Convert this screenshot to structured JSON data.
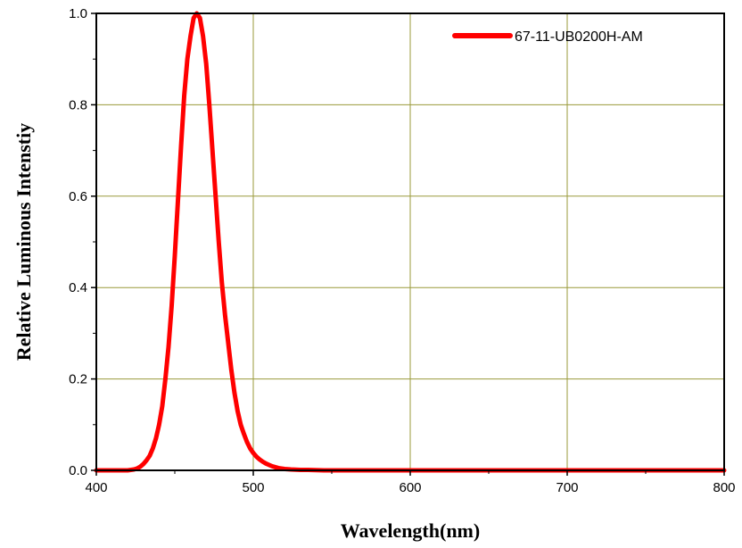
{
  "chart_data": {
    "type": "line",
    "title": "",
    "xlabel": "Wavelength(nm)",
    "ylabel": "Relative Luminous Intenstiy",
    "xlim": [
      400,
      800
    ],
    "ylim": [
      0.0,
      1.0
    ],
    "x_ticks": [
      "400",
      "500",
      "600",
      "700",
      "800"
    ],
    "y_ticks": [
      "0.0",
      "0.2",
      "0.4",
      "0.6",
      "0.8",
      "1.0"
    ],
    "grid": true,
    "grid_color": "#9a9a3a",
    "legend_position": "top-right",
    "series": [
      {
        "name": "67-11-UB0200H-AM",
        "color": "#ff0000",
        "x": [
          400,
          420,
          424,
          426,
          428,
          430,
          432,
          434,
          436,
          438,
          440,
          442,
          444,
          446,
          448,
          450,
          452,
          454,
          456,
          458,
          460,
          462,
          464,
          466,
          468,
          470,
          472,
          474,
          476,
          478,
          480,
          482,
          484,
          486,
          488,
          490,
          492,
          494,
          496,
          498,
          500,
          502,
          504,
          506,
          508,
          510,
          512,
          514,
          516,
          520,
          524,
          530,
          535,
          540,
          545,
          560,
          800
        ],
        "y": [
          0.0,
          0.0,
          0.002,
          0.004,
          0.008,
          0.014,
          0.022,
          0.032,
          0.048,
          0.07,
          0.1,
          0.14,
          0.2,
          0.27,
          0.36,
          0.47,
          0.59,
          0.71,
          0.82,
          0.9,
          0.95,
          0.99,
          1.0,
          0.99,
          0.95,
          0.89,
          0.8,
          0.7,
          0.6,
          0.5,
          0.41,
          0.34,
          0.28,
          0.22,
          0.17,
          0.13,
          0.1,
          0.08,
          0.062,
          0.048,
          0.038,
          0.03,
          0.024,
          0.019,
          0.015,
          0.012,
          0.009,
          0.007,
          0.005,
          0.003,
          0.002,
          0.001,
          0.001,
          0.0005,
          0.0,
          0.0,
          0.0
        ]
      }
    ]
  }
}
